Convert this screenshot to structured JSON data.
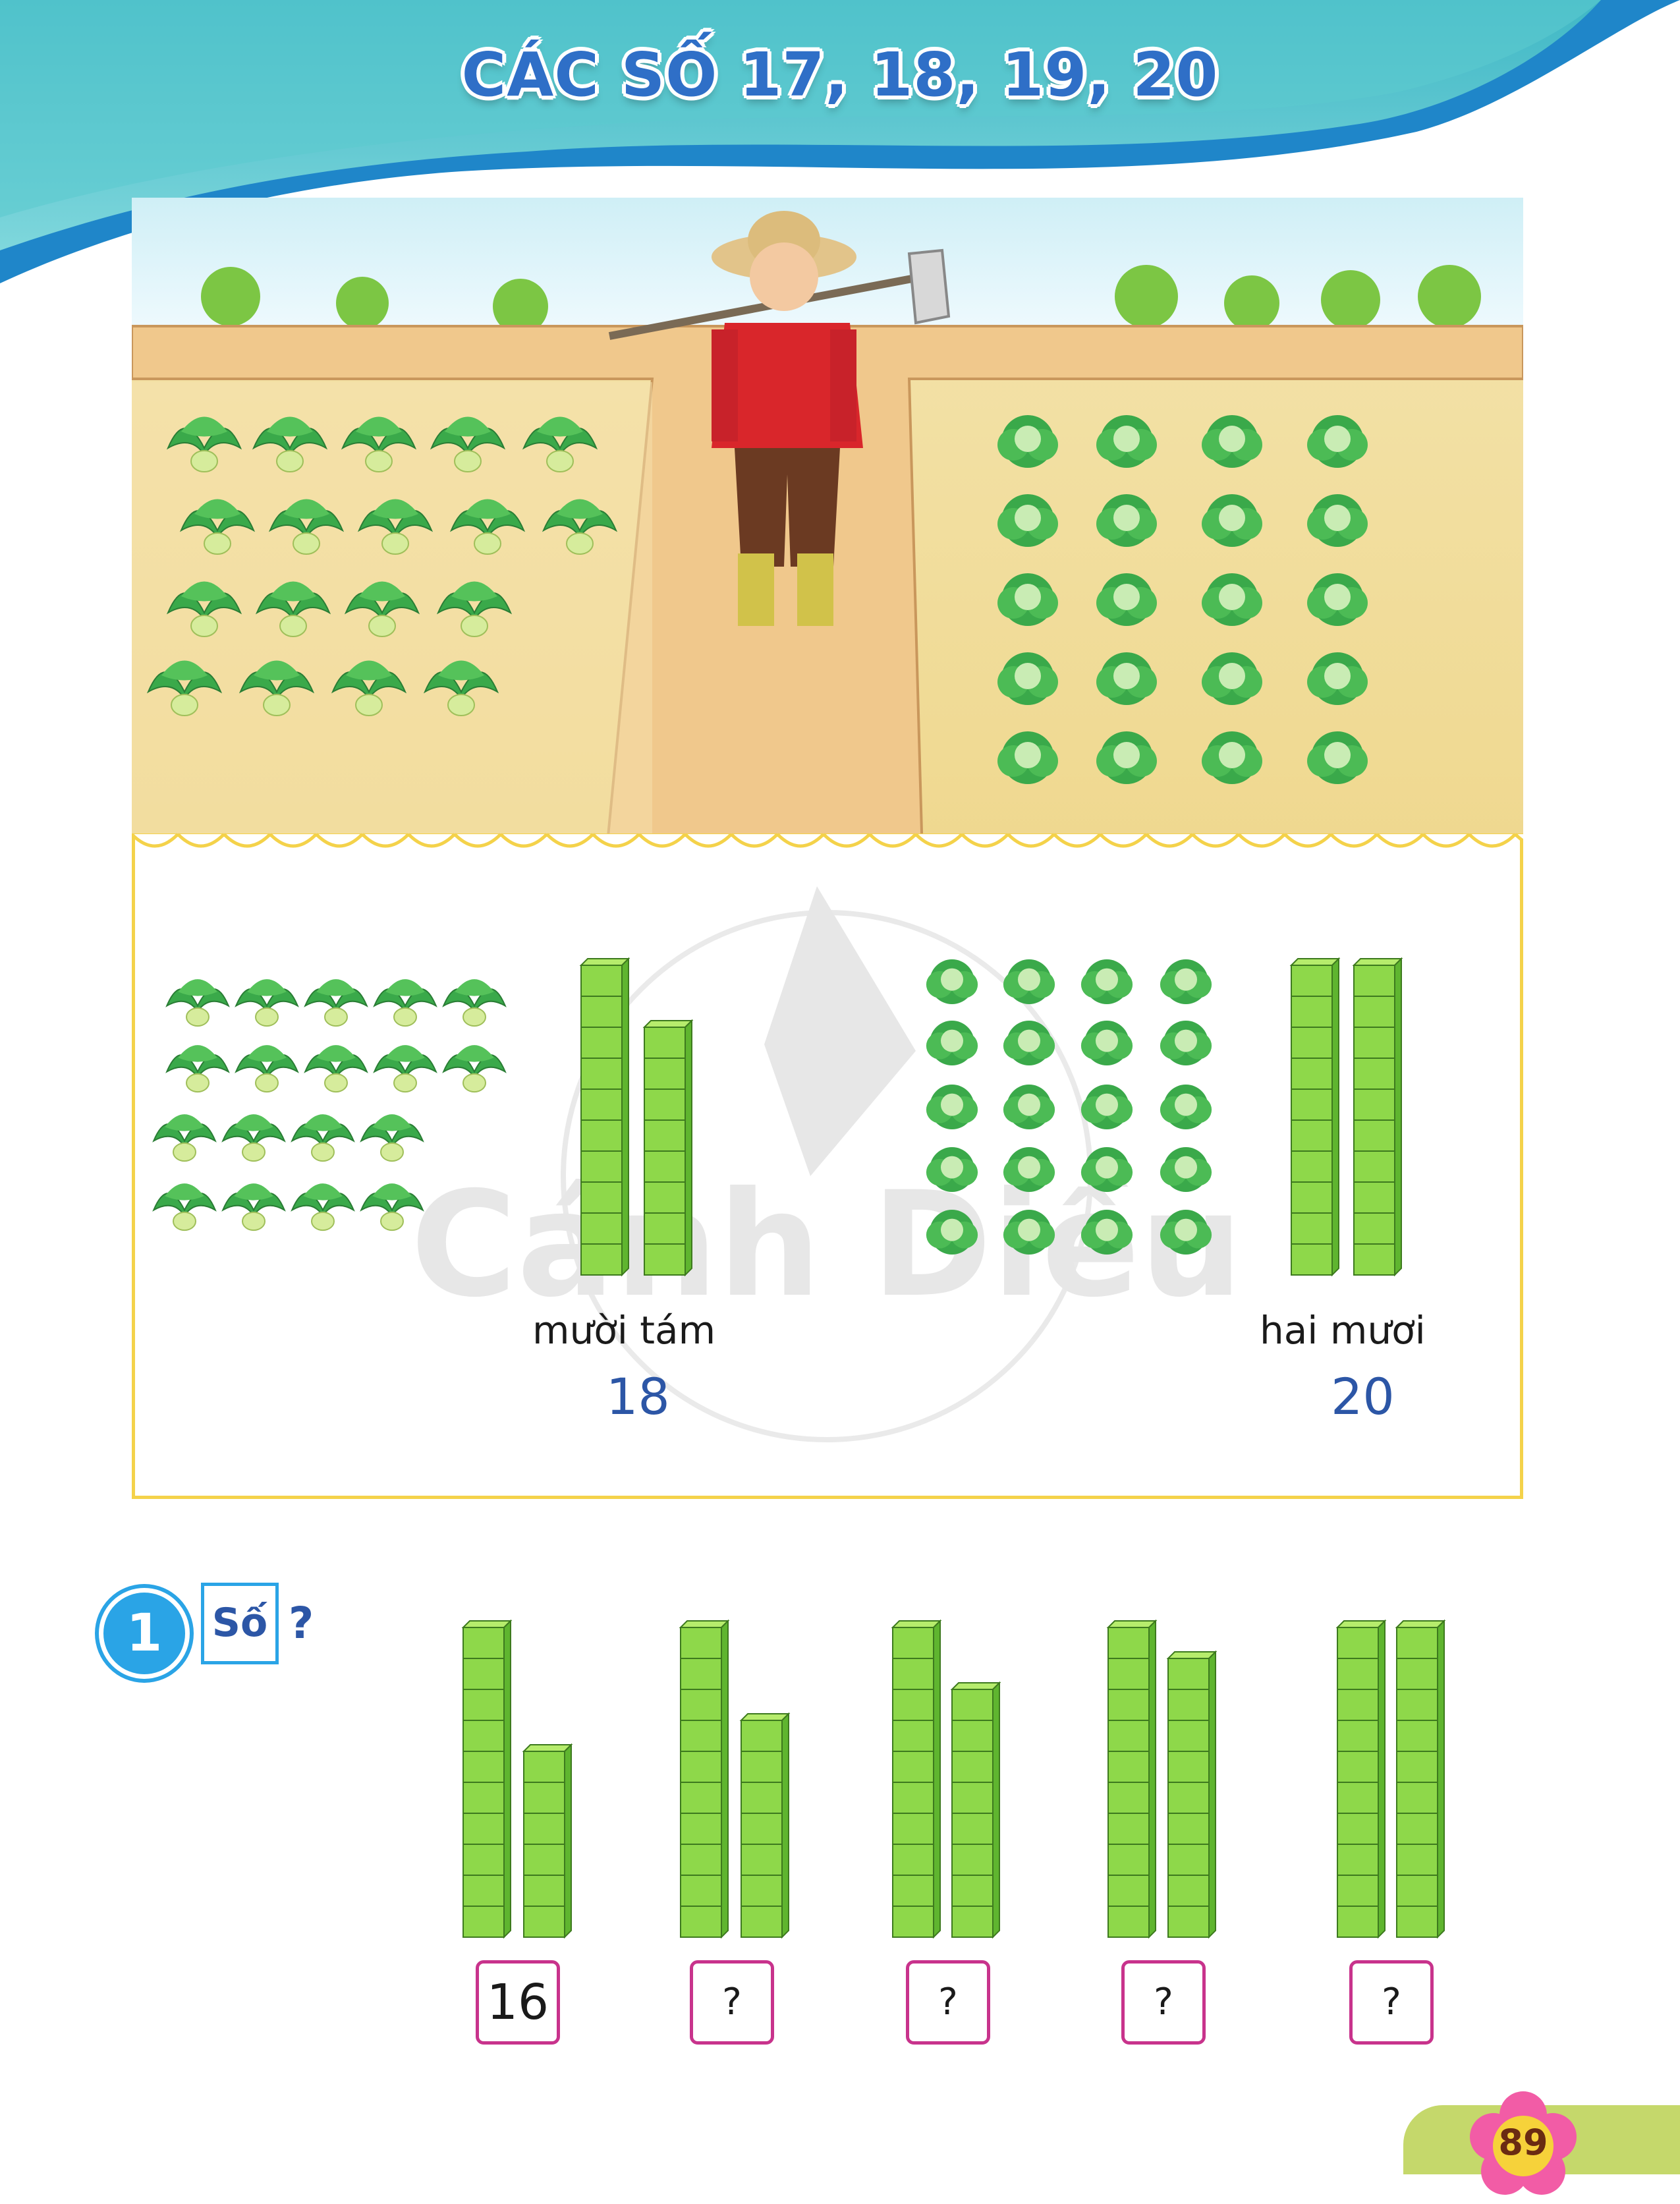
{
  "title": "CÁC SỐ 17, 18, 19, 20",
  "panel": {
    "left_label_words": "mười tám",
    "left_label_number": "18",
    "right_label_words": "hai mươi",
    "right_label_number": "20",
    "watermark": "Cánh Diều"
  },
  "exercise": {
    "number": "1",
    "instruction_word": "Số",
    "question_mark": "?",
    "answers": [
      "16",
      "?",
      "?",
      "?",
      "?"
    ]
  },
  "page_number": "89",
  "colors": {
    "title": "#2f6fc7",
    "banner": "#4fc3cf",
    "cube_green": "#8ed84a",
    "answer_border": "#c8338c",
    "exercise_blue": "#2aa4e6"
  }
}
